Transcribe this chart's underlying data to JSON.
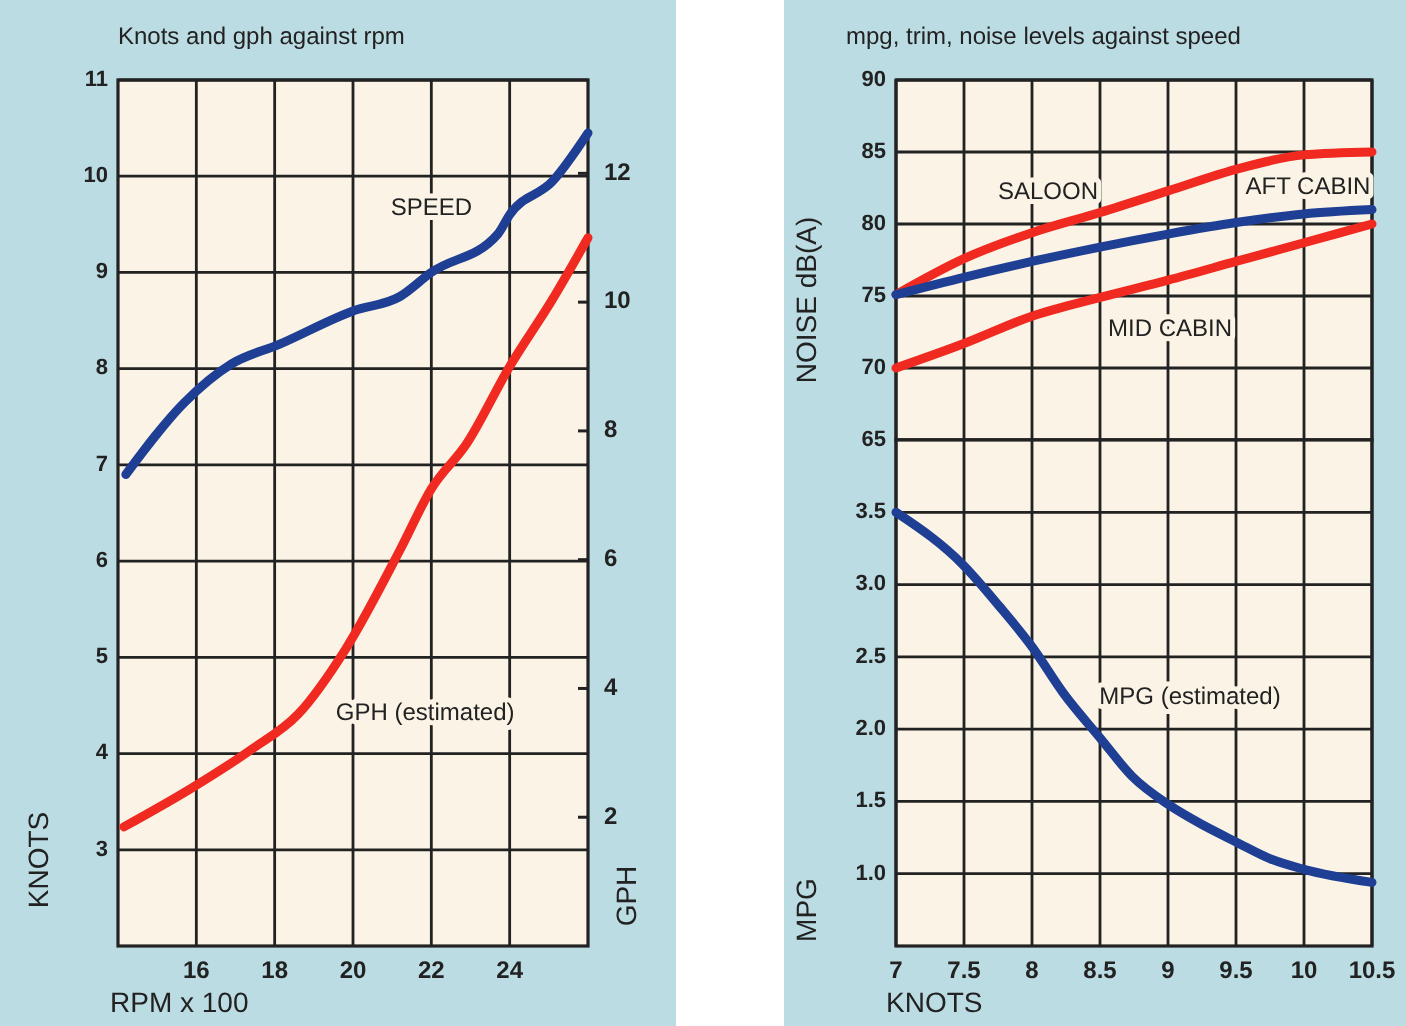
{
  "chart_data": [
    {
      "type": "line",
      "title": "Knots and gph against rpm",
      "xlabel": "RPM x 100",
      "ylabel": "KNOTS",
      "y2label": "GPH",
      "xlim": [
        14,
        26
      ],
      "xticks": [
        16,
        18,
        20,
        22,
        24
      ],
      "ylim": [
        2,
        11
      ],
      "yticks": [
        3,
        4,
        5,
        6,
        7,
        8,
        9,
        10,
        11
      ],
      "y2lim": [
        0,
        13.45
      ],
      "y2ticks": [
        2,
        4,
        6,
        8,
        10,
        12
      ],
      "grid": true,
      "marker": "none",
      "line_style": "solid",
      "series": [
        {
          "name": "SPEED",
          "color": "#1f3f95",
          "x": [
            14.2,
            15.7,
            16.9,
            18.1,
            20,
            21.2,
            22,
            23.7,
            24,
            25.1,
            26
          ],
          "values": [
            6.9,
            7.65,
            8.05,
            8.25,
            8.6,
            8.75,
            9.0,
            9.4,
            9.6,
            9.95,
            10.45
          ]
        },
        {
          "name": "GPH (estimated)",
          "color": "#f02a20",
          "axis": "y2",
          "x": [
            14.15,
            15.9,
            17.4,
            18.6,
            19.8,
            21.2,
            22,
            22.9,
            24,
            25.1,
            26
          ],
          "values": [
            1.85,
            2.46,
            3.05,
            3.6,
            4.6,
            6.15,
            7.1,
            7.8,
            9.0,
            10.05,
            11.0
          ]
        }
      ]
    },
    {
      "type": "line",
      "title": "mpg, trim, noise levels against speed",
      "ylabel": "NOISE dB(A)",
      "xlim": [
        7,
        10.5
      ],
      "xticks": [
        7,
        7.5,
        8,
        8.5,
        9,
        9.5,
        10,
        10.5
      ],
      "ylim": [
        65,
        90
      ],
      "yticks": [
        65,
        70,
        75,
        80,
        85,
        90
      ],
      "tick_labels": "y",
      "grid": true,
      "marker": "none",
      "line_style": "solid",
      "series": [
        {
          "name": "SALOON",
          "color": "#f02a20",
          "x": [
            7,
            7.5,
            8,
            8.5,
            9,
            9.5,
            10,
            10.5
          ],
          "values": [
            75.1,
            77.6,
            79.4,
            80.8,
            82.3,
            83.8,
            84.8,
            85.0
          ]
        },
        {
          "name": "AFT CABIN",
          "color": "#1f3f95",
          "x": [
            7,
            7.5,
            8,
            8.5,
            9,
            9.5,
            10,
            10.5
          ],
          "values": [
            75.1,
            76.3,
            77.4,
            78.4,
            79.3,
            80.1,
            80.7,
            81.0
          ]
        },
        {
          "name": "MID CABIN",
          "color": "#f02a20",
          "x": [
            7,
            7.5,
            8,
            8.5,
            9,
            9.5,
            10,
            10.5
          ],
          "values": [
            70,
            71.7,
            73.6,
            74.9,
            76.1,
            77.4,
            78.7,
            80.0
          ]
        }
      ]
    },
    {
      "type": "line",
      "xlabel": "KNOTS",
      "ylabel": "MPG",
      "xlim": [
        7,
        10.5
      ],
      "xticks": [
        7,
        7.5,
        8,
        8.5,
        9,
        9.5,
        10,
        10.5
      ],
      "ylim": [
        0.5,
        4.0
      ],
      "yticks": [
        {
          "value": 1,
          "label": "1.0"
        },
        1.5,
        {
          "value": 2,
          "label": "2.0"
        },
        2.5,
        {
          "value": 3,
          "label": "3.0"
        },
        3.5
      ],
      "grid": true,
      "marker": "none",
      "line_style": "solid",
      "series": [
        {
          "name": "MPG (estimated)",
          "color": "#1f3f95",
          "x": [
            7,
            7.5,
            7.76,
            8,
            8.23,
            8.5,
            8.74,
            9,
            9.25,
            9.5,
            9.76,
            10,
            10.5
          ],
          "values": [
            3.5,
            3.13,
            2.85,
            2.57,
            2.25,
            1.94,
            1.67,
            1.48,
            1.34,
            1.22,
            1.1,
            1.03,
            0.94
          ]
        }
      ]
    }
  ]
}
